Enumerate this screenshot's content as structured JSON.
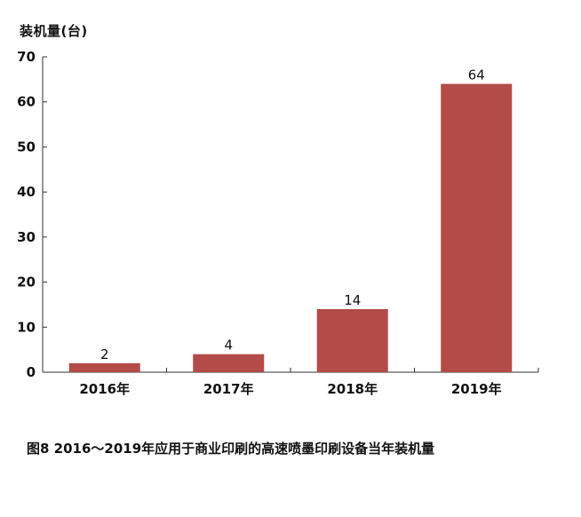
{
  "chart_data": {
    "type": "bar",
    "title": "",
    "ylabel": "装机量(台)",
    "xlabel": "",
    "categories": [
      "2016年",
      "2017年",
      "2018年",
      "2019年"
    ],
    "values": [
      2,
      4,
      14,
      64
    ],
    "data_labels": [
      "2",
      "4",
      "14",
      "64"
    ],
    "ylim": [
      0,
      70
    ],
    "yticks": [
      0,
      10,
      20,
      30,
      40,
      50,
      60,
      70
    ],
    "grid": false,
    "legend": "none",
    "bar_color": "#b34b48"
  },
  "caption": "图8 2016～2019年应用于商业印刷的高速喷墨印刷设备当年装机量"
}
